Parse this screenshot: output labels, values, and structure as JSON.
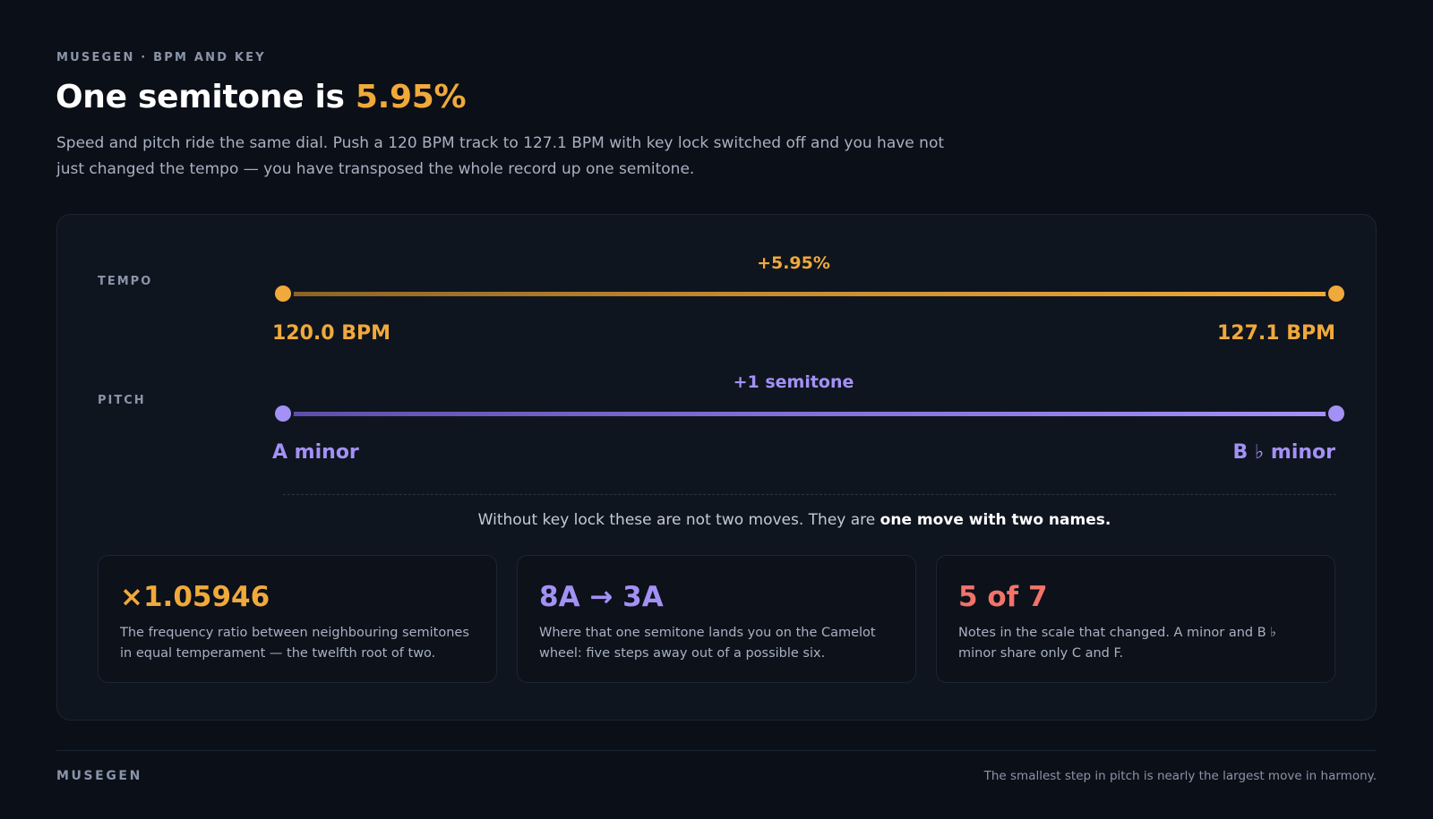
{
  "header": {
    "eyebrow": "MUSEGEN · BPM AND KEY",
    "headline_prefix": "One semitone is ",
    "headline_accent": "5.95%",
    "lede": "Speed and pitch ride the same dial. Push a 120 BPM track to 127.1 BPM with key lock switched off and you have not just changed the tempo — you have transposed the whole record up one semitone."
  },
  "tempo": {
    "label": "TEMPO",
    "delta": "+5.95%",
    "start": "120.0 BPM",
    "end": "127.1 BPM",
    "start_value": 120.0,
    "end_value": 127.1
  },
  "pitch": {
    "label": "PITCH",
    "delta": "+1 semitone",
    "start": "A minor",
    "end": "B ♭ minor"
  },
  "caption": {
    "text": "Without key lock these are not two moves. They are ",
    "emphasis": "one move with two names."
  },
  "stats": [
    {
      "value": "×1.05946",
      "desc": "The frequency ratio between neighbouring semitones in equal temperament — the twelfth root of two.",
      "color": "#f0a93b"
    },
    {
      "value": "8A → 3A",
      "desc": "Where that one semitone lands you on the Camelot wheel: five steps away out of a possible six.",
      "color": "#a391f5"
    },
    {
      "value": "5 of 7",
      "desc": "Notes in the scale that changed. A minor and B ♭ minor share only C and F.",
      "color": "#f2736a"
    }
  ],
  "footer": {
    "brand": "MUSEGEN",
    "note": "The smallest step in pitch is nearly the largest move in harmony."
  },
  "colors": {
    "background": "#0b0f17",
    "tempo_accent": "#f0a93b",
    "pitch_accent": "#a391f5",
    "coral": "#f2736a"
  }
}
